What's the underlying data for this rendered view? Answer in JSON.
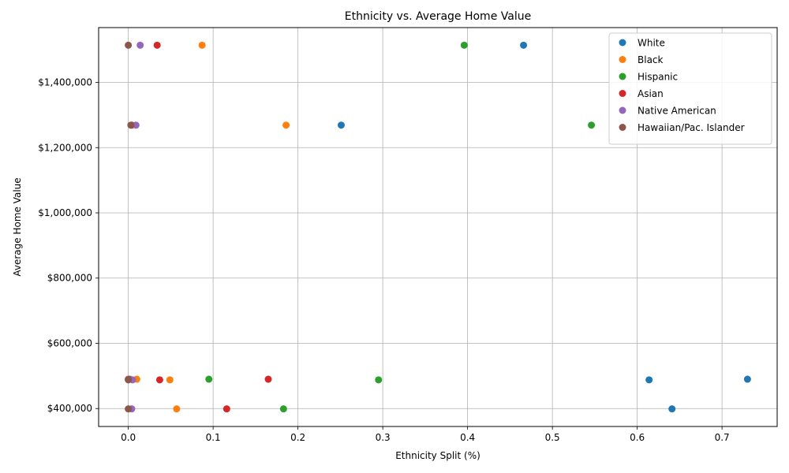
{
  "chart_data": {
    "type": "scatter",
    "title": "Ethnicity vs. Average Home Value",
    "xlabel": "Ethnicity Split (%)",
    "ylabel": "Average Home Value",
    "xlim": [
      -0.035,
      0.765
    ],
    "ylim": [
      345000,
      1568000
    ],
    "xticks": [
      0.0,
      0.1,
      0.2,
      0.3,
      0.4,
      0.5,
      0.6,
      0.7
    ],
    "xtick_labels": [
      "0.0",
      "0.1",
      "0.2",
      "0.3",
      "0.4",
      "0.5",
      "0.6",
      "0.7"
    ],
    "yticks": [
      400000,
      600000,
      800000,
      1000000,
      1200000,
      1400000
    ],
    "ytick_labels": [
      "$400,000",
      "$600,000",
      "$800,000",
      "$1,000,000",
      "$1,200,000",
      "$1,400,000"
    ],
    "grid": true,
    "legend_position": "top-right",
    "series": [
      {
        "name": "White",
        "color": "#1f77b4",
        "points": [
          [
            0.73,
            490000
          ],
          [
            0.614,
            488000
          ],
          [
            0.641,
            399000
          ],
          [
            0.251,
            1269000
          ],
          [
            0.466,
            1514000
          ]
        ]
      },
      {
        "name": "Black",
        "color": "#ff7f0e",
        "points": [
          [
            0.01,
            490000
          ],
          [
            0.049,
            488000
          ],
          [
            0.057,
            399000
          ],
          [
            0.186,
            1269000
          ],
          [
            0.087,
            1514000
          ]
        ]
      },
      {
        "name": "Hispanic",
        "color": "#2ca02c",
        "points": [
          [
            0.095,
            490000
          ],
          [
            0.295,
            488000
          ],
          [
            0.183,
            399000
          ],
          [
            0.546,
            1269000
          ],
          [
            0.396,
            1514000
          ]
        ]
      },
      {
        "name": "Asian",
        "color": "#d62728",
        "points": [
          [
            0.165,
            490000
          ],
          [
            0.037,
            488000
          ],
          [
            0.116,
            399000
          ],
          [
            0.004,
            1269000
          ],
          [
            0.034,
            1514000
          ]
        ]
      },
      {
        "name": "Native American",
        "color": "#9467bd",
        "points": [
          [
            0.002,
            490000
          ],
          [
            0.005,
            488000
          ],
          [
            0.004,
            399000
          ],
          [
            0.009,
            1269000
          ],
          [
            0.014,
            1514000
          ]
        ]
      },
      {
        "name": "Hawaiian/Pac. Islander",
        "color": "#8c564b",
        "points": [
          [
            0.0,
            490000
          ],
          [
            0.0,
            488000
          ],
          [
            0.0,
            399000
          ],
          [
            0.003,
            1269000
          ],
          [
            0.0,
            1514000
          ]
        ]
      }
    ]
  }
}
